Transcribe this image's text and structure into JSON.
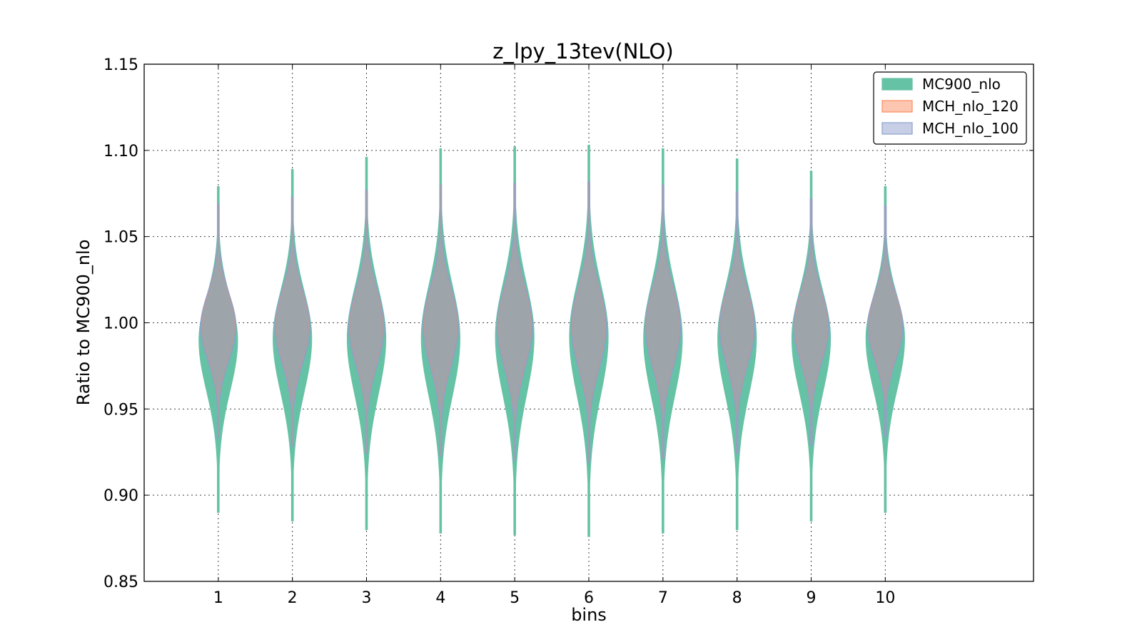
{
  "chart_data": {
    "type": "violin",
    "title": "z_lpy_13tev(NLO)",
    "xlabel": "bins",
    "ylabel": "Ratio to MC900_nlo",
    "categories": [
      "1",
      "2",
      "3",
      "4",
      "5",
      "6",
      "7",
      "8",
      "9",
      "10"
    ],
    "x_ticks": [
      1,
      2,
      3,
      4,
      5,
      6,
      7,
      8,
      9,
      10
    ],
    "xlim": [
      -0.0,
      12.0
    ],
    "ylim": [
      0.85,
      1.15
    ],
    "y_ticks": [
      0.85,
      0.9,
      0.95,
      1.0,
      1.05,
      1.1,
      1.15
    ],
    "y_tick_labels": [
      "0.85",
      "0.90",
      "0.95",
      "1.00",
      "1.05",
      "1.10",
      "1.15"
    ],
    "grid": true,
    "legend_position": "top-right",
    "series": [
      {
        "name": "MC900_nlo",
        "color": "#66c2a5",
        "mode": [
          0.99,
          0.991,
          0.991,
          0.991,
          0.992,
          0.992,
          0.991,
          0.991,
          0.991,
          0.991
        ],
        "min": [
          0.89,
          0.885,
          0.88,
          0.878,
          0.877,
          0.876,
          0.878,
          0.88,
          0.885,
          0.89
        ],
        "max": [
          1.079,
          1.089,
          1.096,
          1.101,
          1.102,
          1.103,
          1.101,
          1.095,
          1.088,
          1.079
        ],
        "half_width": [
          0.26,
          0.26,
          0.26,
          0.26,
          0.26,
          0.26,
          0.26,
          0.26,
          0.26,
          0.26
        ]
      },
      {
        "name": "MCH_nlo_120",
        "color": "#fc8d62",
        "mode": [
          0.998,
          0.998,
          0.998,
          0.998,
          0.998,
          0.998,
          0.998,
          0.998,
          0.998,
          0.998
        ],
        "min": [
          0.935,
          0.93,
          0.925,
          0.923,
          0.921,
          0.92,
          0.922,
          0.925,
          0.93,
          0.935
        ],
        "max": [
          1.068,
          1.072,
          1.076,
          1.08,
          1.08,
          1.081,
          1.079,
          1.075,
          1.071,
          1.067
        ],
        "half_width": [
          0.22,
          0.22,
          0.22,
          0.22,
          0.22,
          0.22,
          0.22,
          0.22,
          0.22,
          0.22
        ]
      },
      {
        "name": "MCH_nlo_100",
        "color": "#8da0cb",
        "mode": [
          0.997,
          0.997,
          0.997,
          0.997,
          0.997,
          0.997,
          0.997,
          0.997,
          0.997,
          0.997
        ],
        "min": [
          0.933,
          0.928,
          0.924,
          0.922,
          0.92,
          0.919,
          0.921,
          0.924,
          0.929,
          0.934
        ],
        "max": [
          1.069,
          1.073,
          1.077,
          1.08,
          1.081,
          1.082,
          1.08,
          1.076,
          1.072,
          1.068
        ],
        "half_width": [
          0.24,
          0.24,
          0.24,
          0.24,
          0.24,
          0.24,
          0.24,
          0.24,
          0.24,
          0.24
        ]
      }
    ]
  }
}
